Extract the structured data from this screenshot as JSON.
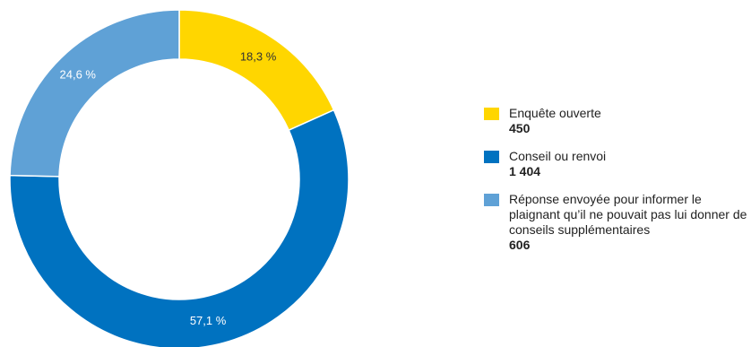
{
  "chart_data": {
    "type": "pie",
    "variant": "donut",
    "slices": [
      {
        "label": "Enquête ouverte",
        "value": 450,
        "percent_label": "18,3 %",
        "color": "#FFD600",
        "label_color": "#333333"
      },
      {
        "label": "Conseil ou renvoi",
        "value": 1404,
        "percent_label": "57,1 %",
        "color": "#0072C0",
        "label_color": "#ffffff"
      },
      {
        "label": "Réponse envoyée pour informer le plaignant qu’il ne pouvait pas lui donner de conseils supplémentaires",
        "value": 606,
        "percent_label": "24,6 %",
        "color": "#5FA1D6",
        "label_color": "#ffffff"
      }
    ],
    "legend": {
      "position": "right",
      "items": [
        {
          "label": "Enquête ouverte",
          "value_label": "450",
          "color": "#FFD600"
        },
        {
          "label": "Conseil ou renvoi",
          "value_label": "1 404",
          "color": "#0072C0"
        },
        {
          "label": "Réponse envoyée pour informer le plaignant qu’il ne pouvait pas lui donner de conseils supplémentaires",
          "value_label": "606",
          "color": "#5FA1D6"
        }
      ]
    }
  }
}
